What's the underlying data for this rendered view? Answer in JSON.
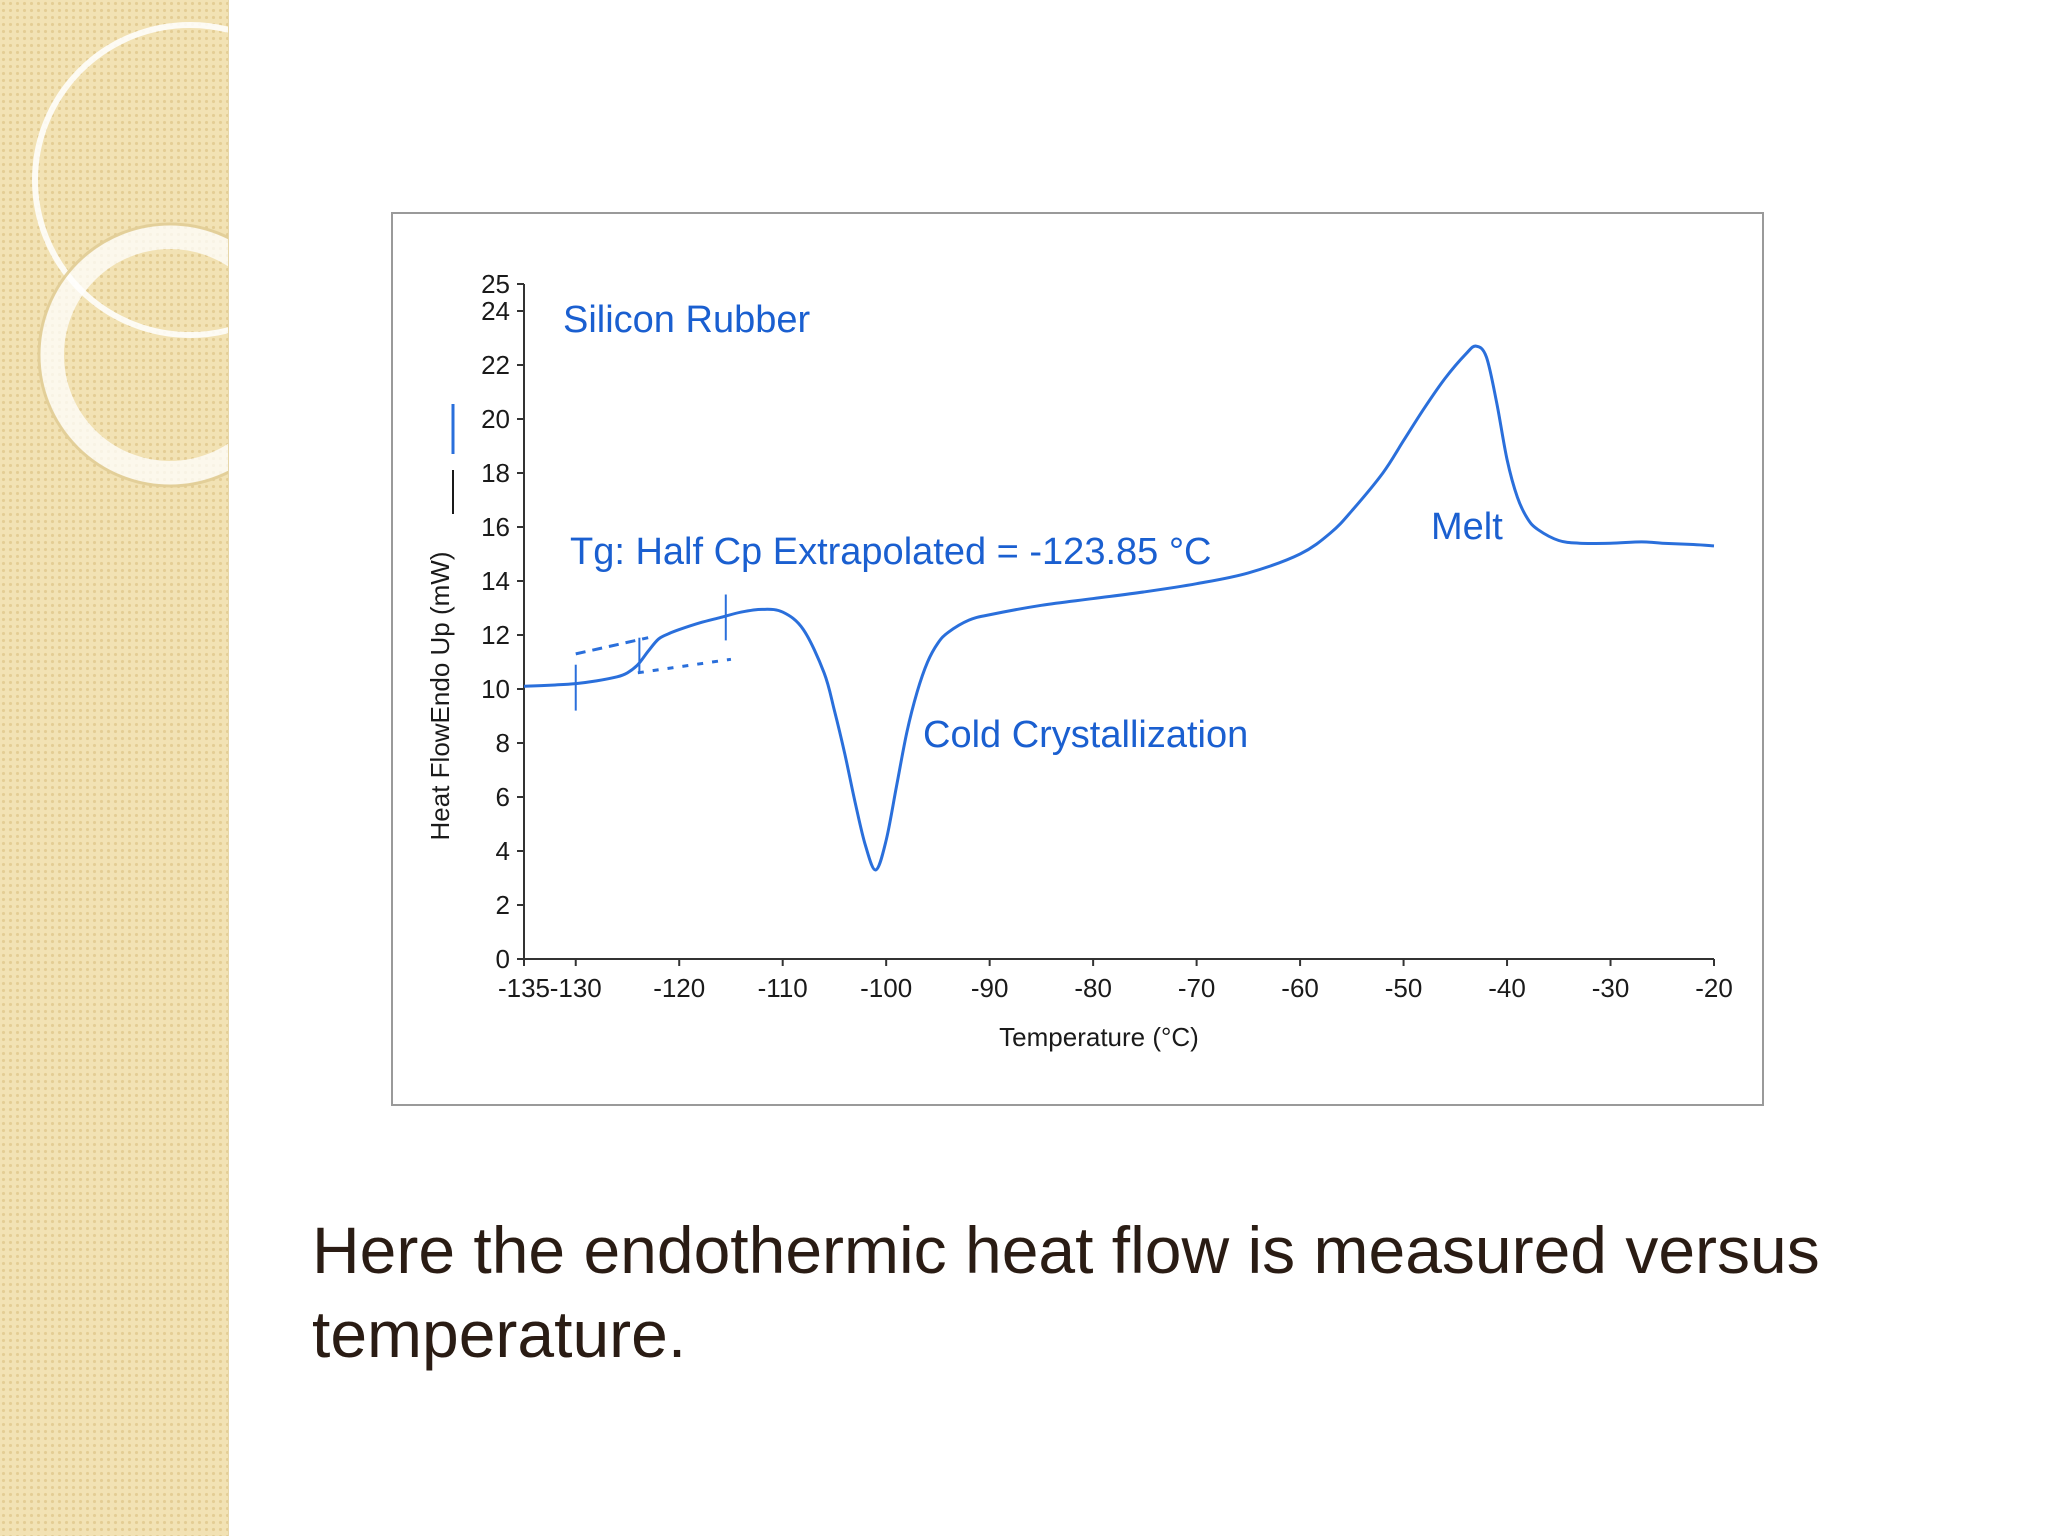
{
  "slide": {
    "caption": "Here the endothermic heat flow is measured versus temperature."
  },
  "colors": {
    "curve": "#2a6fdb",
    "annotation": "#1a5fd0",
    "sidebar": "#f2e2b4",
    "caption": "#2a1c14"
  },
  "chart_data": {
    "type": "line",
    "title": "Silicon Rubber",
    "xlabel": "Temperature (°C)",
    "ylabel": "Heat FlowEndo Up (mW)",
    "xlim": [
      -135,
      -20
    ],
    "ylim": [
      0,
      25
    ],
    "x_ticks": [
      -135,
      -130,
      -120,
      -110,
      -100,
      -90,
      -80,
      -70,
      -60,
      -50,
      -40,
      -30,
      -20
    ],
    "y_ticks": [
      0,
      2,
      4,
      6,
      8,
      10,
      12,
      14,
      16,
      18,
      20,
      22,
      24,
      25
    ],
    "grid": false,
    "series": [
      {
        "x": [
          -135,
          -132,
          -130,
          -128,
          -126,
          -125,
          -124,
          -123,
          -122,
          -121,
          -120,
          -118,
          -116,
          -114,
          -112,
          -110,
          -108,
          -106,
          -105,
          -104,
          -103,
          -102,
          -101,
          -100,
          -99,
          -98,
          -97,
          -96,
          -95,
          -94,
          -92,
          -90,
          -85,
          -80,
          -75,
          -70,
          -65,
          -60,
          -57,
          -55,
          -52,
          -50,
          -48,
          -46,
          -44,
          -43,
          -42,
          -41,
          -40,
          -39,
          -38,
          -37,
          -35,
          -33,
          -30,
          -27,
          -25,
          -22,
          -20
        ],
        "y": [
          10.1,
          10.15,
          10.2,
          10.3,
          10.45,
          10.6,
          10.9,
          11.4,
          11.85,
          12.05,
          12.2,
          12.45,
          12.65,
          12.85,
          12.95,
          12.85,
          12.2,
          10.6,
          9.2,
          7.6,
          5.8,
          4.2,
          3.3,
          4.4,
          6.4,
          8.4,
          9.9,
          11.0,
          11.7,
          12.1,
          12.55,
          12.75,
          13.1,
          13.35,
          13.6,
          13.9,
          14.3,
          15.0,
          15.8,
          16.6,
          18.0,
          19.2,
          20.4,
          21.5,
          22.4,
          22.7,
          22.3,
          20.6,
          18.5,
          17.1,
          16.3,
          15.9,
          15.5,
          15.4,
          15.4,
          15.45,
          15.4,
          15.35,
          15.3
        ]
      }
    ],
    "annotations": [
      {
        "text": "Silicon Rubber"
      },
      {
        "text": "Tg: Half Cp Extrapolated = -123.85 °C"
      },
      {
        "text": "Cold Crystallization"
      },
      {
        "text": "Melt"
      }
    ]
  }
}
